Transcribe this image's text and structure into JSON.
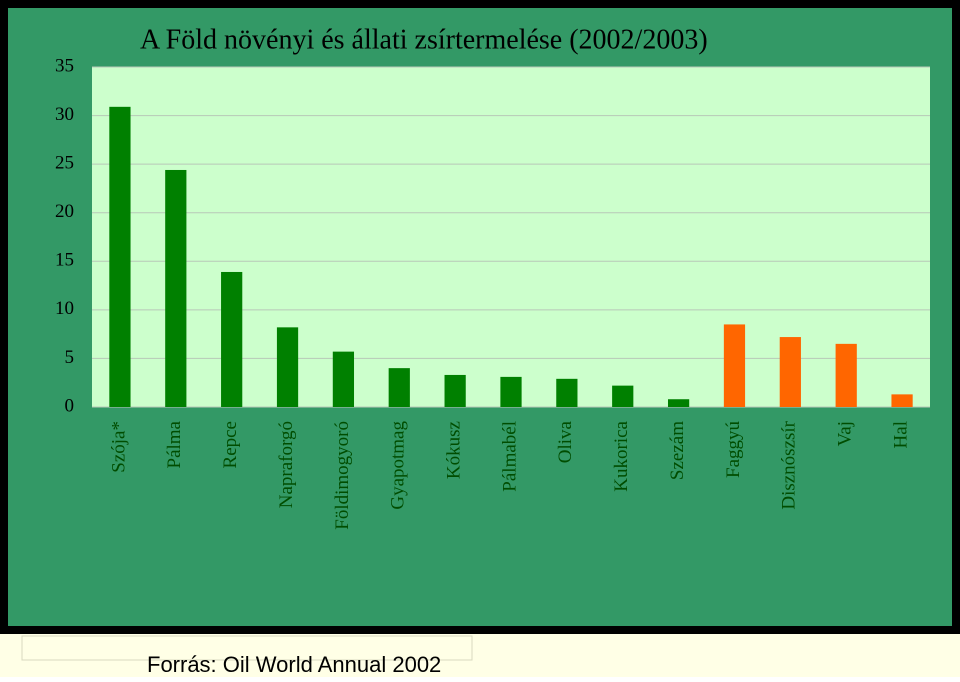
{
  "chart_data": {
    "type": "bar",
    "title": "A Föld növényi és állati zsírtermelése (2002/2003)",
    "source": "Forrás: Oil World Annual 2002",
    "categories": [
      "Szója*",
      "Pálma",
      "Repce",
      "Napraforgó",
      "Földimogyoró",
      "Gyapotmag",
      "Kókusz",
      "Pálmabél",
      "Oliva",
      "Kukorica",
      "Szezám",
      "Faggyú",
      "Disznószsír",
      "Vaj",
      "Hal"
    ],
    "values": [
      30.9,
      24.4,
      13.9,
      8.2,
      5.7,
      4.0,
      3.3,
      3.1,
      2.9,
      2.2,
      0.8,
      8.5,
      7.2,
      6.5,
      1.3
    ],
    "colors": [
      "#008000",
      "#008000",
      "#008000",
      "#008000",
      "#008000",
      "#008000",
      "#008000",
      "#008000",
      "#008000",
      "#008000",
      "#008000",
      "#ff6600",
      "#ff6600",
      "#ff6600",
      "#ff6600"
    ],
    "ylim": [
      0,
      35
    ],
    "yticks": [
      0,
      5,
      10,
      15,
      20,
      25,
      30,
      35
    ],
    "grid": true
  }
}
